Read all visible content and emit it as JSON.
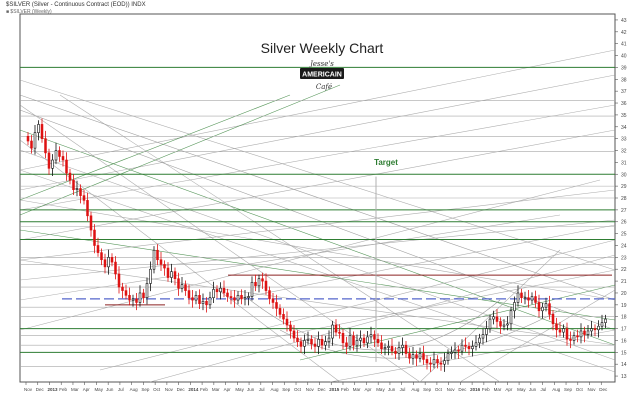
{
  "header": {
    "symbol_line": "$SILVER (Silver - Continuous Contract (EOD)) INDX",
    "series_line": "■ $SILVER (Weekly)"
  },
  "chart_data": {
    "type": "candlestick",
    "title": "Silver Weekly Chart",
    "logo_text": [
      "Jesse's",
      "AMERICAIN",
      "Café"
    ],
    "annotation": "Target",
    "y_axis": {
      "position": "right",
      "ylim": [
        12.5,
        43.5
      ],
      "ticks": [
        13,
        14,
        15,
        16,
        17,
        18,
        19,
        20,
        21,
        22,
        23,
        24,
        25,
        26,
        27,
        28,
        29,
        30,
        31,
        32,
        33,
        34,
        35,
        36,
        37,
        38,
        39,
        40,
        41,
        42,
        43
      ]
    },
    "x_axis": {
      "labels": [
        "Nov",
        "Dec",
        "2013",
        "Feb",
        "Mar",
        "Apr",
        "May",
        "Jun",
        "Jul",
        "Aug",
        "Sep",
        "Oct",
        "Nov",
        "Dec",
        "2014",
        "Feb",
        "Mar",
        "Apr",
        "May",
        "Jun",
        "Jul",
        "Aug",
        "Sep",
        "Oct",
        "Nov",
        "Dec",
        "2015",
        "Feb",
        "Mar",
        "Apr",
        "May",
        "Jun",
        "Jul",
        "Aug",
        "Sep",
        "Oct",
        "Nov",
        "Dec",
        "2016",
        "Feb",
        "Mar",
        "Apr",
        "May",
        "Jun",
        "Jul",
        "Aug",
        "Sep",
        "Oct",
        "Nov",
        "Dec"
      ]
    },
    "series": [
      {
        "name": "$SILVER (Weekly)",
        "close": [
          32.8,
          32.2,
          33.5,
          34.2,
          33.0,
          31.8,
          30.5,
          31.2,
          32.0,
          31.5,
          31.2,
          30.1,
          29.5,
          28.7,
          28.8,
          28.2,
          27.8,
          26.5,
          25.3,
          24.0,
          23.4,
          22.8,
          22.2,
          23.0,
          22.6,
          21.6,
          20.5,
          20.2,
          19.8,
          19.4,
          19.5,
          19.2,
          20.0,
          19.6,
          20.8,
          22.0,
          23.6,
          22.8,
          22.4,
          22.1,
          21.3,
          21.8,
          21.2,
          20.4,
          20.7,
          20.2,
          19.6,
          19.4,
          19.8,
          19.1,
          19.3,
          19.0,
          19.6,
          20.3,
          20.1,
          20.4,
          20.0,
          19.7,
          19.6,
          19.4,
          19.8,
          19.5,
          19.6,
          19.7,
          20.9,
          20.6,
          21.2,
          21.0,
          20.2,
          19.5,
          19.2,
          18.7,
          18.2,
          17.8,
          17.3,
          16.8,
          16.2,
          15.9,
          15.5,
          16.0,
          16.1,
          15.7,
          15.5,
          16.1,
          15.6,
          15.9,
          16.2,
          17.3,
          16.7,
          16.6,
          15.8,
          15.5,
          16.4,
          15.6,
          16.0,
          16.2,
          15.8,
          16.3,
          16.5,
          16.1,
          15.8,
          15.3,
          15.4,
          15.5,
          15.1,
          14.9,
          15.4,
          15.6,
          14.9,
          14.5,
          14.8,
          14.5,
          14.9,
          14.4,
          14.1,
          14.0,
          14.4,
          14.1,
          14.0,
          14.3,
          14.9,
          15.0,
          15.2,
          15.1,
          15.6,
          15.5,
          15.3,
          15.5,
          15.8,
          16.2,
          16.5,
          17.0,
          17.8,
          18.0,
          17.6,
          17.2,
          17.3,
          17.4,
          18.5,
          19.2,
          20.0,
          19.6,
          19.6,
          19.4,
          19.7,
          19.2,
          18.5,
          18.8,
          19.1,
          18.2,
          17.4,
          16.9,
          16.7,
          17.0,
          16.1,
          16.0,
          16.4,
          16.3,
          16.8,
          16.5,
          16.8,
          17.0,
          16.9,
          17.2,
          17.5,
          17.8
        ]
      }
    ],
    "horizontal_levels": {
      "green": [
        39.0,
        30.0,
        27.0,
        26.0,
        24.5,
        17.0,
        15.0
      ],
      "gray": [
        36.2,
        34.9,
        33.2,
        31.9,
        29.0,
        28.0,
        25.6,
        23.0,
        22.4,
        20.5,
        18.8,
        18.0,
        16.4,
        15.6,
        13.8
      ],
      "maroon": [
        21.5,
        19.0
      ],
      "blue": [
        19.5
      ]
    }
  }
}
